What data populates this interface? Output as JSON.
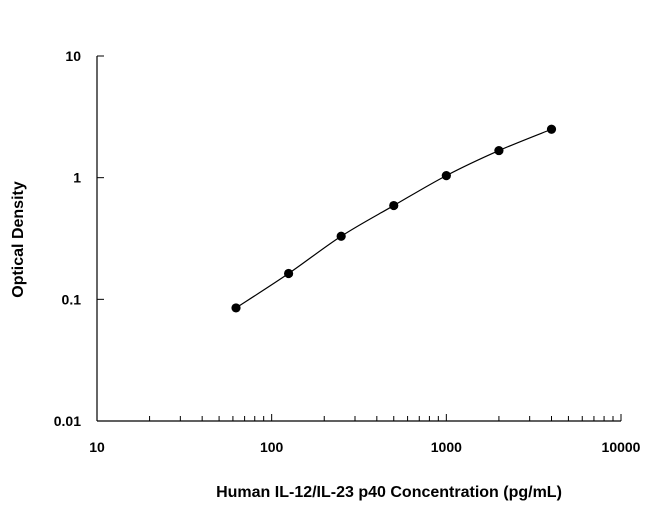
{
  "chart_data": {
    "type": "scatter",
    "title": "",
    "xlabel": "Human IL-12/IL-23 p40 Concentration (pg/mL)",
    "ylabel": "Optical Density",
    "x_scale": "log",
    "y_scale": "log",
    "xlim": [
      10,
      10000
    ],
    "ylim": [
      0.01,
      10
    ],
    "x_ticks": [
      10,
      100,
      1000,
      10000
    ],
    "x_tick_labels": [
      "10",
      "100",
      "1000",
      "10000"
    ],
    "y_ticks": [
      0.01,
      0.1,
      1,
      10
    ],
    "y_tick_labels": [
      "0.01",
      "0.1",
      "1",
      "10"
    ],
    "grid": false,
    "legend": "none",
    "fit_line": true,
    "colors": {
      "points": "#000000",
      "line": "#000000",
      "axis": "#000000"
    },
    "series": [
      {
        "x": [
          62.5,
          125,
          250,
          500,
          1000,
          2000,
          4000
        ],
        "y": [
          0.085,
          0.163,
          0.33,
          0.59,
          1.04,
          1.67,
          2.5
        ]
      }
    ]
  }
}
